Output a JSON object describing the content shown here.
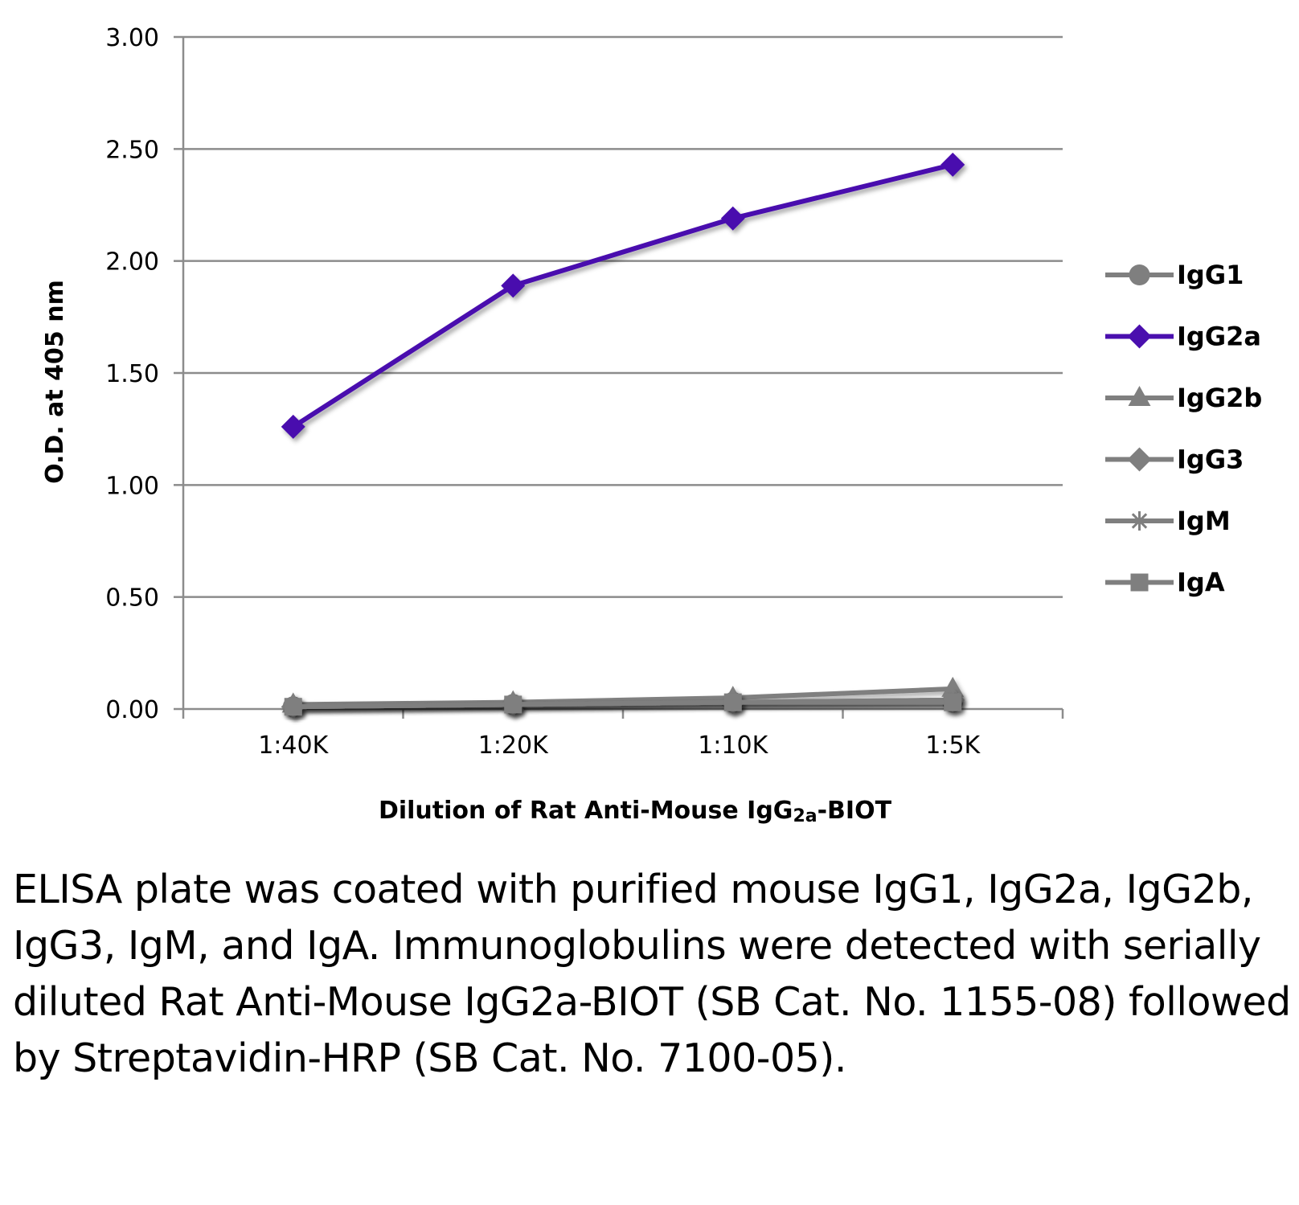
{
  "chart_data": {
    "type": "line",
    "title": "",
    "xlabel": "Dilution of Rat Anti-Mouse IgG2a-BIOT",
    "xlabel_parts": [
      "Dilution of Rat Anti-Mouse IgG",
      "2a",
      "-BIOT"
    ],
    "ylabel": "O.D. at 405 nm",
    "ylim": [
      0,
      3
    ],
    "yticks": [
      "0.00",
      "0.50",
      "1.00",
      "1.50",
      "2.00",
      "2.50",
      "3.00"
    ],
    "categories": [
      "1:40K",
      "1:20K",
      "1:10K",
      "1:5K"
    ],
    "grid": true,
    "legend_position": "right",
    "series": [
      {
        "name": "IgG1",
        "marker": "circle",
        "color": "#7f7f7f",
        "values": [
          0.01,
          0.02,
          0.03,
          0.03
        ]
      },
      {
        "name": "IgG2a",
        "marker": "diamond",
        "color": "#4a0fae",
        "values": [
          1.26,
          1.89,
          2.19,
          2.43
        ]
      },
      {
        "name": "IgG2b",
        "marker": "triangle",
        "color": "#7f7f7f",
        "values": [
          0.02,
          0.03,
          0.05,
          0.09
        ]
      },
      {
        "name": "IgG3",
        "marker": "diamond",
        "color": "#7f7f7f",
        "values": [
          0.01,
          0.02,
          0.03,
          0.04
        ]
      },
      {
        "name": "IgM",
        "marker": "star",
        "color": "#7f7f7f",
        "values": [
          0.01,
          0.02,
          0.03,
          0.04
        ]
      },
      {
        "name": "IgA",
        "marker": "square",
        "color": "#7f7f7f",
        "values": [
          0.01,
          0.02,
          0.03,
          0.03
        ]
      }
    ]
  },
  "caption": "ELISA plate was coated with purified mouse IgG1, IgG2a, IgG2b, IgG3, IgM, and IgA. Immunoglobulins were detected with serially diluted Rat Anti-Mouse IgG2a-BIOT (SB Cat. No. 1155-08) followed by Streptavidin-HRP (SB Cat. No. 7100-05)."
}
